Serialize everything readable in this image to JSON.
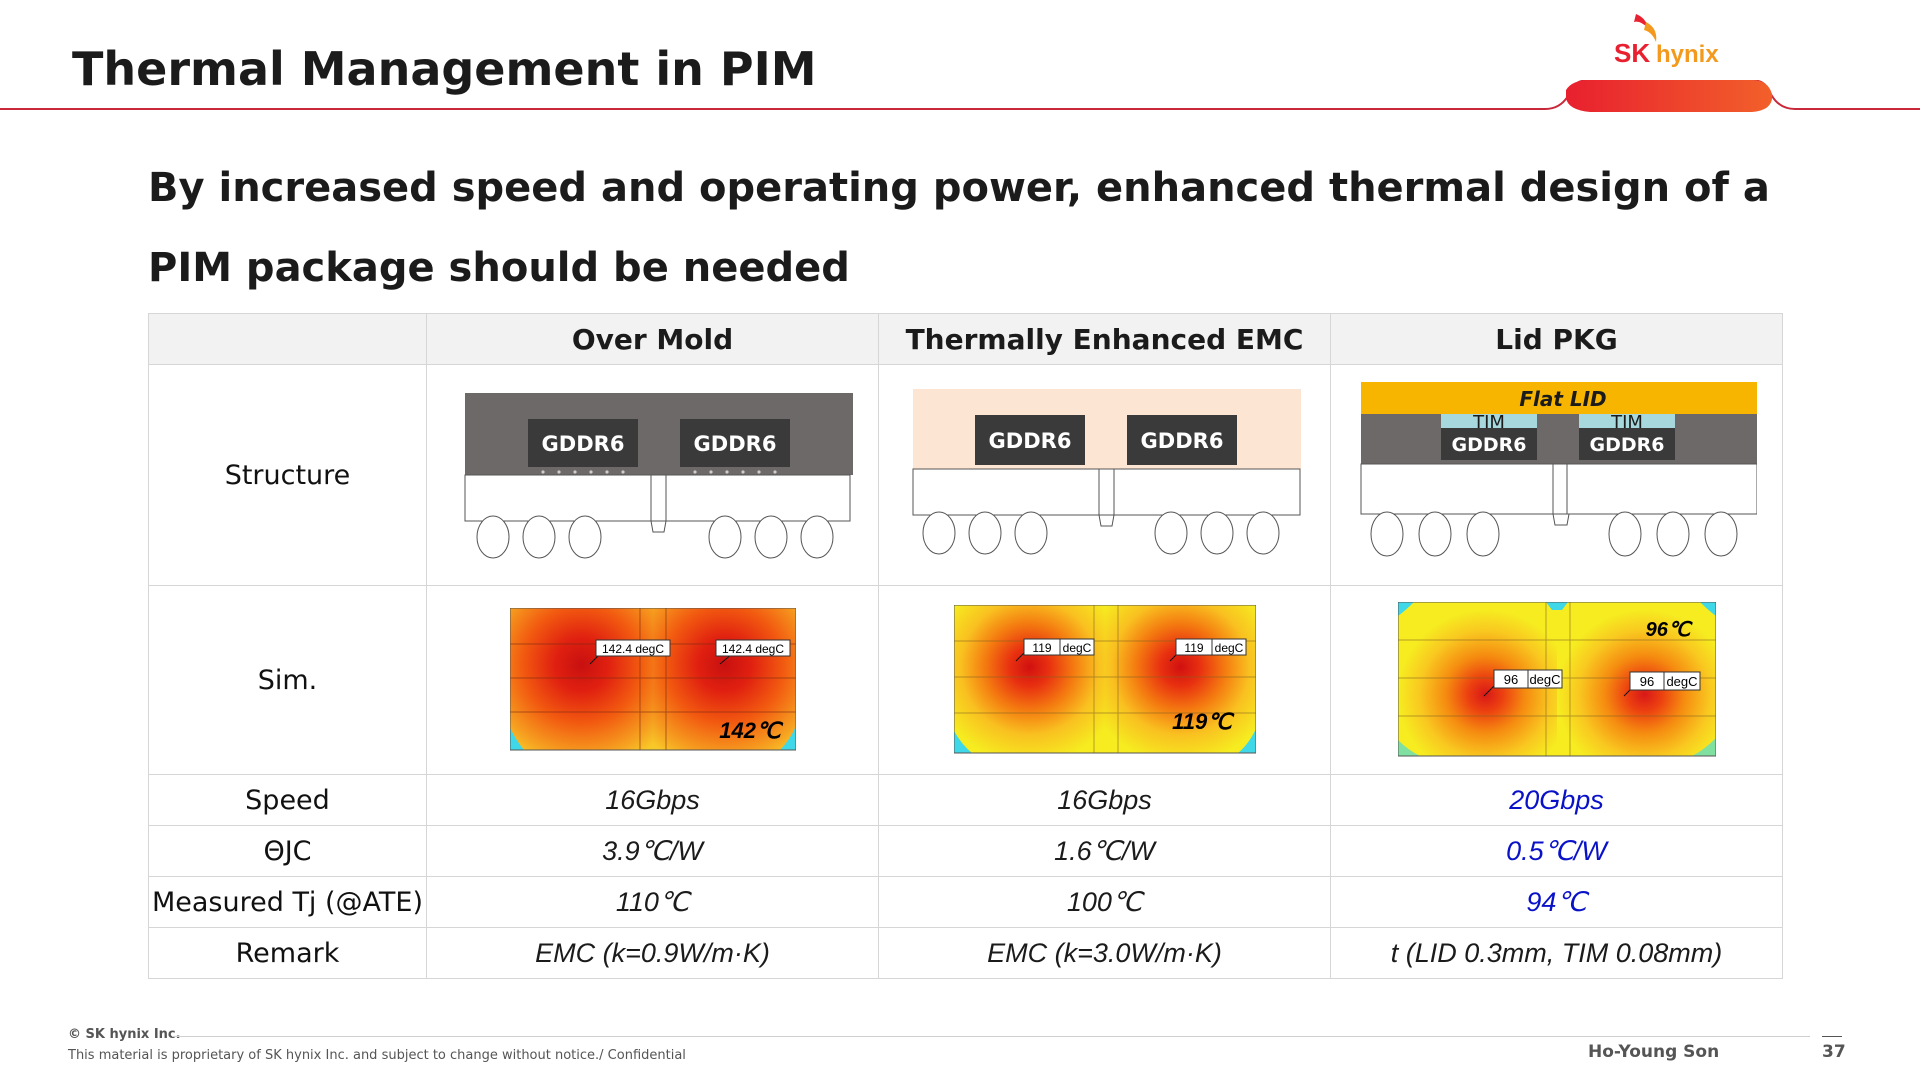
{
  "header": {
    "title": "Thermal Management in PIM",
    "logo_text_sk": "SK",
    "logo_text_hynix": "hynix"
  },
  "subtitle": "By increased speed and operating power, enhanced thermal design of a PIM package should be needed",
  "table": {
    "columns": [
      "Over Mold",
      "Thermally Enhanced EMC",
      "Lid PKG"
    ],
    "row_labels": {
      "structure": "Structure",
      "sim": "Sim.",
      "speed": "Speed",
      "theta": "ΘJC",
      "tj": "Measured Tj (@ATE)",
      "remark": "Remark"
    },
    "structure": {
      "chip_label": "GDDR6",
      "flat_lid": "Flat LID",
      "tim": "TIM"
    },
    "sim": {
      "over_mold": {
        "probe": "142.4 degC",
        "temp": "142℃"
      },
      "emc": {
        "probe_value": "119",
        "probe_unit": "degC",
        "temp": "119℃"
      },
      "lid": {
        "probe_value": "96",
        "probe_unit": "degC",
        "temp": "96℃"
      }
    },
    "speed": [
      "16Gbps",
      "16Gbps",
      "20Gbps"
    ],
    "theta": [
      "3.9℃/W",
      "1.6℃/W",
      "0.5℃/W"
    ],
    "tj": [
      "110℃",
      "100℃",
      "94℃"
    ],
    "remark": [
      "EMC (k=0.9W/m·K)",
      "EMC (k=3.0W/m·K)",
      "t (LID 0.3mm, TIM 0.08mm)"
    ]
  },
  "footer": {
    "copyright": "© SK hynix Inc.",
    "notice": "This material is proprietary of SK hynix Inc. and subject to change without notice./ Confidential",
    "author": "Ho-Young Son",
    "page": "37"
  },
  "colors": {
    "brand_red": "#e8202f",
    "brand_orange": "#f39a1e",
    "highlight_blue": "#0a12c8",
    "mold_gray": "#6e6969",
    "emc_peach": "#fde5d4",
    "lid_gold": "#f7b500",
    "tim_blue": "#a6d8de"
  }
}
